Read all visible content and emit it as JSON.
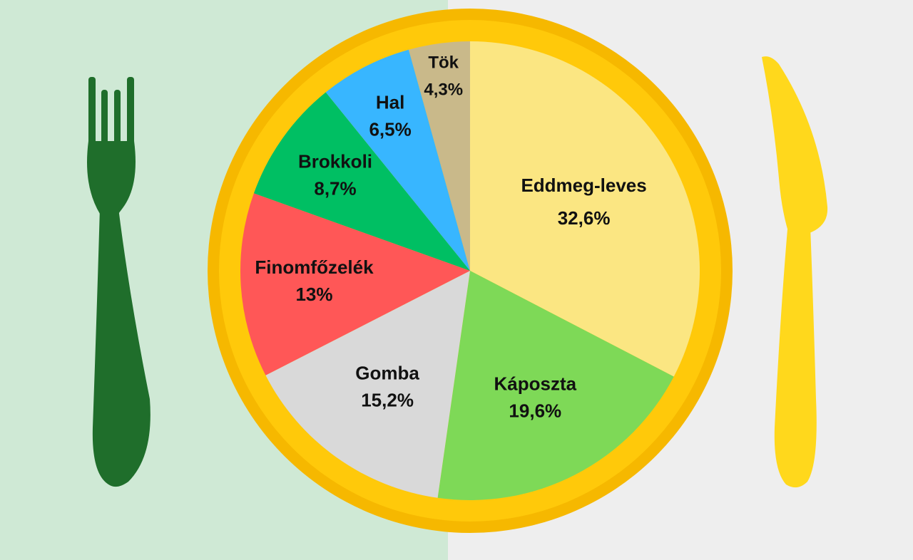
{
  "colors": {
    "background_left": "#cfe9d5",
    "background_right": "#eeeeee",
    "plate_rim": "#f6b800",
    "plate_inner": "#ffc90a",
    "fork": "#1f6e2b",
    "knife": "#ffd81c"
  },
  "chart_data": {
    "type": "pie",
    "start": "12 o'clock",
    "direction": "clockwise",
    "slices": [
      {
        "label": "Eddmeg-leves",
        "value": 32.6,
        "display": "32,6%",
        "color": "#fbe682"
      },
      {
        "label": "Káposzta",
        "value": 19.6,
        "display": "19,6%",
        "color": "#7ed957"
      },
      {
        "label": "Gomba",
        "value": 15.2,
        "display": "15,2%",
        "color": "#d9d9d9"
      },
      {
        "label": "Finomfőzelék",
        "value": 13,
        "display": "13%",
        "color": "#ff5757"
      },
      {
        "label": "Brokkoli",
        "value": 8.7,
        "display": "8,7%",
        "color": "#00bf63"
      },
      {
        "label": "Hal",
        "value": 6.5,
        "display": "6,5%",
        "color": "#38b6ff"
      },
      {
        "label": "Tök",
        "value": 4.3,
        "display": "4,3%",
        "color": "#c9b98a"
      }
    ]
  }
}
